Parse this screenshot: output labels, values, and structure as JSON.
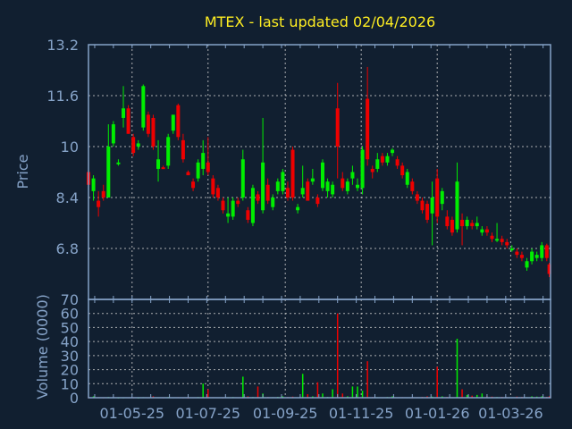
{
  "chart_data": [
    {
      "type": "candlestick",
      "title": "MTEX - last updated 02/04/2026",
      "ylabel": "Price",
      "ylim": [
        5.2,
        13.2
      ],
      "yticks": [
        "13.2",
        "11.6",
        "10",
        "8.4",
        "6.8"
      ],
      "xlim": [
        "2025-03-27",
        "2026-04-02"
      ],
      "xticks": [
        {
          "date": "2025-05-01",
          "label": "01-05-25"
        },
        {
          "date": "2025-07-01",
          "label": "01-07-25"
        },
        {
          "date": "2025-09-01",
          "label": "01-09-25"
        },
        {
          "date": "2025-11-01",
          "label": "01-11-25"
        },
        {
          "date": "2026-01-01",
          "label": "01-01-26"
        },
        {
          "date": "2026-03-01",
          "label": "01-03-26"
        }
      ],
      "grid": true,
      "colors": {
        "up": "#00ee00",
        "down": "#ee0000",
        "background": "#111f30",
        "axis": "#86a3c8",
        "grid": "#c8c8c8",
        "title": "#ffee22"
      },
      "columns": [
        "date",
        "open",
        "high",
        "low",
        "close",
        "volume"
      ],
      "candles": [
        [
          "2025-03-27",
          9.2,
          9.3,
          8.7,
          8.8,
          0.3
        ],
        [
          "2025-03-31",
          8.6,
          9.1,
          8.3,
          9.0,
          1.0
        ],
        [
          "2025-04-04",
          8.3,
          8.6,
          7.8,
          8.1,
          0.4
        ],
        [
          "2025-04-08",
          8.6,
          8.8,
          8.3,
          8.4,
          0.2
        ],
        [
          "2025-04-12",
          8.4,
          10.7,
          8.4,
          10.0,
          0.5
        ],
        [
          "2025-04-16",
          10.1,
          10.8,
          10.0,
          10.7,
          0.3
        ],
        [
          "2025-04-20",
          9.5,
          9.6,
          9.4,
          9.5,
          0.1
        ],
        [
          "2025-04-24",
          10.9,
          11.9,
          10.6,
          11.2,
          0.2
        ],
        [
          "2025-04-28",
          11.2,
          11.3,
          10.4,
          10.4,
          0.3
        ],
        [
          "2025-05-02",
          10.3,
          10.4,
          9.7,
          9.8,
          0.2
        ],
        [
          "2025-05-06",
          10.0,
          10.2,
          9.9,
          10.1,
          0.1
        ],
        [
          "2025-05-10",
          10.6,
          11.95,
          10.5,
          11.9,
          0.4
        ],
        [
          "2025-05-14",
          11.0,
          11.1,
          10.3,
          10.4,
          0.3
        ],
        [
          "2025-05-18",
          10.9,
          11.0,
          9.9,
          10.0,
          1.0
        ],
        [
          "2025-05-22",
          9.3,
          10.2,
          8.9,
          9.6,
          0.3
        ],
        [
          "2025-05-26",
          9.35,
          9.4,
          9.3,
          9.3,
          0.2
        ],
        [
          "2025-05-30",
          9.4,
          10.4,
          9.3,
          10.3,
          0.5
        ],
        [
          "2025-06-03",
          10.5,
          11.0,
          10.4,
          11.0,
          0.3
        ],
        [
          "2025-06-07",
          11.3,
          11.35,
          10.2,
          10.3,
          0.4
        ],
        [
          "2025-06-11",
          10.2,
          10.4,
          9.5,
          9.6,
          0.2
        ],
        [
          "2025-06-15",
          9.2,
          9.25,
          9.1,
          9.1,
          0.1
        ],
        [
          "2025-06-19",
          8.9,
          9.0,
          8.6,
          8.7,
          0.3
        ],
        [
          "2025-06-23",
          9.0,
          9.6,
          8.9,
          9.5,
          0.5
        ],
        [
          "2025-06-27",
          9.3,
          10.2,
          9.1,
          9.8,
          10.0
        ],
        [
          "2025-07-01",
          9.5,
          10.3,
          9.1,
          9.2,
          6.0
        ],
        [
          "2025-07-05",
          9.0,
          9.1,
          8.4,
          8.5,
          0.4
        ],
        [
          "2025-07-09",
          8.7,
          8.8,
          8.3,
          8.4,
          0.3
        ],
        [
          "2025-07-13",
          8.3,
          8.4,
          7.9,
          8.0,
          0.2
        ],
        [
          "2025-07-17",
          7.8,
          8.4,
          7.6,
          7.9,
          0.4
        ],
        [
          "2025-07-21",
          7.8,
          8.4,
          7.7,
          8.3,
          0.5
        ],
        [
          "2025-07-25",
          8.3,
          8.4,
          8.1,
          8.2,
          0.3
        ],
        [
          "2025-07-29",
          8.4,
          9.9,
          8.3,
          9.6,
          15.0
        ],
        [
          "2025-08-02",
          8.0,
          8.1,
          7.6,
          7.7,
          1.0
        ],
        [
          "2025-08-06",
          7.6,
          8.8,
          7.5,
          8.7,
          0.5
        ],
        [
          "2025-08-10",
          8.5,
          8.6,
          8.2,
          8.3,
          8.0
        ],
        [
          "2025-08-14",
          8.0,
          10.9,
          7.9,
          9.5,
          3.0
        ],
        [
          "2025-08-18",
          8.8,
          9.0,
          8.2,
          8.3,
          0.5
        ],
        [
          "2025-08-22",
          8.1,
          8.5,
          8.0,
          8.4,
          0.4
        ],
        [
          "2025-08-26",
          8.6,
          9.0,
          8.5,
          8.9,
          0.6
        ],
        [
          "2025-08-30",
          8.6,
          9.3,
          8.5,
          9.2,
          1.0
        ],
        [
          "2025-09-03",
          8.7,
          8.9,
          8.3,
          8.4,
          0.5
        ],
        [
          "2025-09-07",
          9.9,
          10.0,
          8.3,
          8.4,
          0.8
        ],
        [
          "2025-09-11",
          8.0,
          8.2,
          7.9,
          8.1,
          0.3
        ],
        [
          "2025-09-15",
          8.5,
          9.4,
          8.4,
          8.7,
          17.0
        ],
        [
          "2025-09-19",
          8.9,
          9.0,
          8.3,
          8.3,
          2.5
        ],
        [
          "2025-09-23",
          8.9,
          9.3,
          8.8,
          9.0,
          1.0
        ],
        [
          "2025-09-27",
          8.4,
          8.5,
          8.1,
          8.2,
          11.0
        ],
        [
          "2025-10-01",
          8.7,
          9.6,
          8.6,
          9.5,
          3.0
        ],
        [
          "2025-10-05",
          8.6,
          9.0,
          8.4,
          8.9,
          0.6
        ],
        [
          "2025-10-09",
          8.5,
          8.9,
          8.4,
          8.8,
          6.0
        ],
        [
          "2025-10-13",
          11.2,
          12.0,
          9.0,
          10.0,
          60.0
        ],
        [
          "2025-10-17",
          9.0,
          9.2,
          8.6,
          8.7,
          3.0
        ],
        [
          "2025-10-21",
          8.6,
          9.0,
          8.5,
          8.9,
          1.0
        ],
        [
          "2025-10-25",
          9.0,
          9.4,
          8.8,
          9.2,
          8.0
        ],
        [
          "2025-10-29",
          8.7,
          9.0,
          8.6,
          8.8,
          8.0
        ],
        [
          "2025-11-02",
          8.7,
          10.0,
          8.5,
          9.9,
          5.0
        ],
        [
          "2025-11-06",
          11.5,
          12.5,
          9.4,
          9.6,
          26.0
        ],
        [
          "2025-11-10",
          9.3,
          9.4,
          9.0,
          9.2,
          0.5
        ],
        [
          "2025-11-14",
          9.3,
          9.8,
          9.2,
          9.6,
          0.4
        ],
        [
          "2025-11-18",
          9.7,
          9.8,
          9.4,
          9.5,
          0.3
        ],
        [
          "2025-11-22",
          9.5,
          9.8,
          9.4,
          9.7,
          0.5
        ],
        [
          "2025-11-26",
          9.8,
          9.95,
          9.7,
          9.9,
          1.0
        ],
        [
          "2025-11-30",
          9.6,
          9.7,
          9.3,
          9.4,
          0.3
        ],
        [
          "2025-12-04",
          9.4,
          9.5,
          9.0,
          9.1,
          0.4
        ],
        [
          "2025-12-08",
          8.8,
          9.3,
          8.7,
          9.2,
          0.3
        ],
        [
          "2025-12-12",
          8.9,
          9.0,
          8.5,
          8.6,
          0.2
        ],
        [
          "2025-12-16",
          8.5,
          8.6,
          8.2,
          8.3,
          0.4
        ],
        [
          "2025-12-20",
          8.3,
          8.4,
          7.9,
          8.0,
          0.6
        ],
        [
          "2025-12-24",
          8.2,
          8.3,
          7.6,
          7.7,
          1.0
        ],
        [
          "2025-12-28",
          7.9,
          8.9,
          6.9,
          8.4,
          0.8
        ],
        [
          "2026-01-01",
          9.0,
          9.3,
          7.6,
          7.8,
          22.0
        ],
        [
          "2026-01-05",
          8.2,
          8.7,
          8.0,
          8.6,
          1.0
        ],
        [
          "2026-01-09",
          7.8,
          8.0,
          7.4,
          7.5,
          0.6
        ],
        [
          "2026-01-13",
          7.7,
          7.8,
          7.2,
          7.3,
          0.4
        ],
        [
          "2026-01-17",
          7.4,
          9.5,
          7.3,
          8.9,
          42.0
        ],
        [
          "2026-01-21",
          7.7,
          7.9,
          6.9,
          7.5,
          6.0
        ],
        [
          "2026-01-25",
          7.5,
          7.8,
          7.4,
          7.7,
          2.0
        ],
        [
          "2026-01-29",
          7.6,
          7.7,
          7.4,
          7.5,
          1.5
        ],
        [
          "2026-02-02",
          7.5,
          7.8,
          7.4,
          7.6,
          2.0
        ],
        [
          "2026-02-06",
          7.3,
          7.5,
          7.2,
          7.4,
          3.0
        ],
        [
          "2026-02-10",
          7.4,
          7.5,
          7.2,
          7.3,
          1.0
        ],
        [
          "2026-02-14",
          7.2,
          7.3,
          7.0,
          7.1,
          0.8
        ],
        [
          "2026-02-18",
          7.1,
          7.6,
          7.0,
          7.1,
          0.5
        ],
        [
          "2026-02-22",
          7.1,
          7.2,
          6.9,
          7.0,
          0.6
        ],
        [
          "2026-02-26",
          7.0,
          7.1,
          6.8,
          6.9,
          0.4
        ],
        [
          "2026-03-02",
          6.8,
          6.9,
          6.7,
          6.8,
          0.3
        ],
        [
          "2026-03-06",
          6.7,
          6.8,
          6.5,
          6.6,
          0.8
        ],
        [
          "2026-03-10",
          6.6,
          6.7,
          6.4,
          6.5,
          0.6
        ],
        [
          "2026-03-14",
          6.2,
          6.5,
          6.1,
          6.4,
          0.4
        ],
        [
          "2026-03-18",
          6.4,
          6.8,
          6.3,
          6.7,
          1.0
        ],
        [
          "2026-03-22",
          6.5,
          6.7,
          6.4,
          6.6,
          0.8
        ],
        [
          "2026-03-26",
          6.5,
          7.0,
          6.4,
          6.9,
          1.0
        ],
        [
          "2026-03-30",
          6.9,
          6.95,
          6.4,
          6.5,
          0.6
        ],
        [
          "2026-04-01",
          6.3,
          6.35,
          5.9,
          6.0,
          1.0
        ]
      ]
    },
    {
      "type": "bar",
      "ylabel": "Volume (0000)",
      "ylim": [
        0,
        70
      ],
      "yticks": [
        "0",
        "10",
        "20",
        "30",
        "40",
        "50",
        "60",
        "70"
      ],
      "grid": true,
      "note_series": "volume column of candles"
    }
  ]
}
